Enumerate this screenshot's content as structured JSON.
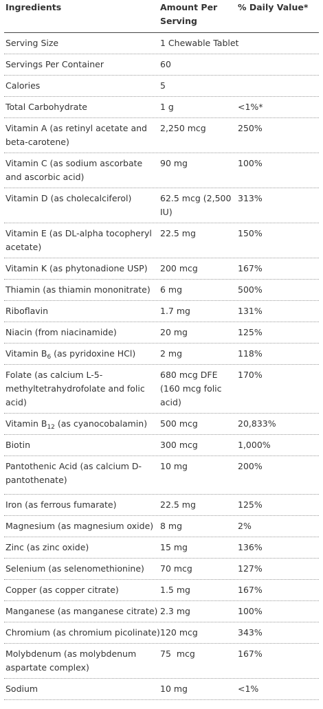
{
  "header": {
    "col1": "Ingredients",
    "col2": "Amount Per Serving",
    "col3": "% Daily Value*"
  },
  "rows": [
    {
      "name": "Serving Size",
      "amount": "1 Chewable Tablet",
      "dv": ""
    },
    {
      "name": "Servings Per Container",
      "amount": "60",
      "dv": ""
    },
    {
      "name": "Calories",
      "amount": "5",
      "dv": ""
    },
    {
      "name": "Total Carbohydrate",
      "amount": "1 g",
      "dv": "<1%*"
    },
    {
      "name": "Vitamin A (as retinyl acetate and beta-carotene)",
      "amount": "2,250 mcg",
      "dv": "250%"
    },
    {
      "name": "Vitamin C (as sodium ascorbate and ascorbic acid)",
      "amount": "90 mg",
      "dv": "100%"
    },
    {
      "name": "Vitamin D (as cholecalciferol)",
      "amount": "62.5 mcg (2,500 IU)",
      "dv": "313%"
    },
    {
      "name": "Vitamin E (as DL-alpha tocopheryl acetate)",
      "amount": "22.5 mg",
      "dv": "150%"
    },
    {
      "name": "Vitamin K (as phytonadione USP)",
      "amount": "200 mcg",
      "dv": "167%"
    },
    {
      "name": "Thiamin (as thiamin mononitrate)",
      "amount": "6 mg",
      "dv": "500%"
    },
    {
      "name": "Riboflavin",
      "amount": "1.7 mg",
      "dv": "131%"
    },
    {
      "name": "Niacin (from niacinamide)",
      "amount": "20 mg",
      "dv": "125%"
    },
    {
      "name_pre": "Vitamin B",
      "name_sub": "6",
      "name_post": " (as pyridoxine HCl)",
      "amount": "2 mg",
      "dv": "118%"
    },
    {
      "name": "Folate (as calcium L-5-methyltetrahydrofolate and folic acid)",
      "amount": "680 mcg DFE (160 mcg folic acid)",
      "dv": "170%"
    },
    {
      "name_pre": "Vitamin B",
      "name_sub": "12",
      "name_post": " (as cyanocobalamin)",
      "amount": "500 mcg",
      "dv": "20,833%"
    },
    {
      "name": "Biotin",
      "amount": "300 mcg",
      "dv": "1,000%"
    },
    {
      "name": "Pantothenic Acid (as calcium D-pantothenate)",
      "amount": "10 mg",
      "dv": "200%"
    },
    {
      "name": "Iron (as ferrous fumarate)",
      "amount": "22.5 mg",
      "dv": "125%"
    },
    {
      "name": "Magnesium (as magnesium oxide)",
      "amount": "8 mg",
      "dv": "2%"
    },
    {
      "name": "Zinc (as zinc oxide)",
      "amount": "15 mg",
      "dv": "136%"
    },
    {
      "name": "Selenium (as selenomethionine)",
      "amount": "70 mcg",
      "dv": "127%"
    },
    {
      "name": "Copper (as copper citrate)",
      "amount": "1.5 mg",
      "dv": "167%"
    },
    {
      "name": "Manganese (as manganese citrate)",
      "amount": "2.3 mg",
      "dv": "100%"
    },
    {
      "name": "Chromium (as chromium picolinate)",
      "amount": "120 mcg",
      "dv": "343%"
    },
    {
      "name": "Molybdenum (as molybdenum aspartate complex)",
      "amount": "75  mcg",
      "dv": "167%"
    },
    {
      "name": "Sodium",
      "amount": "10 mg",
      "dv": "<1%"
    }
  ]
}
